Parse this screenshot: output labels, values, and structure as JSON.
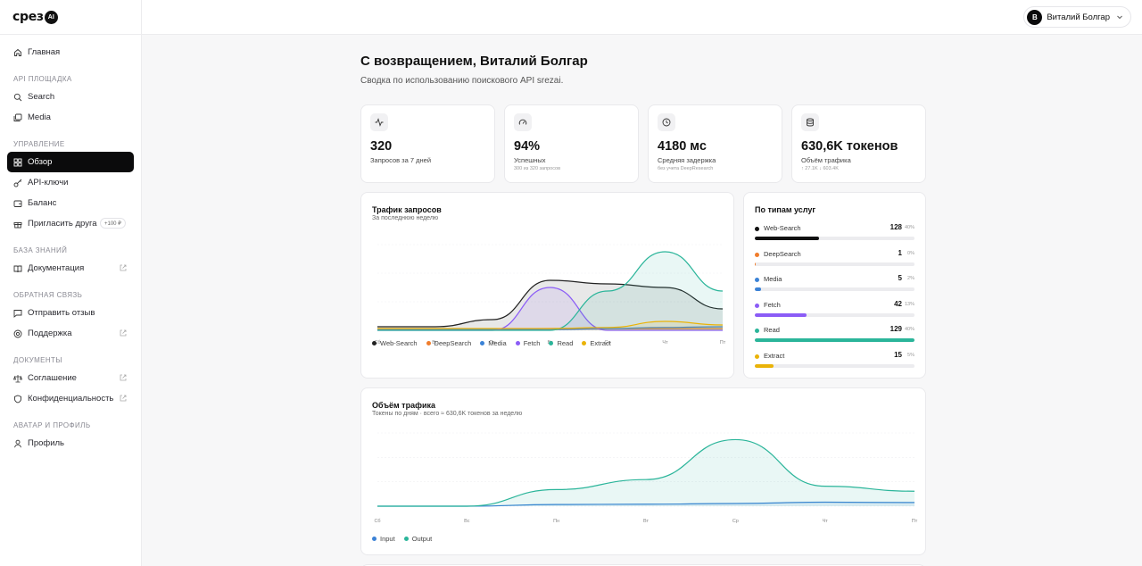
{
  "app": {
    "logo_text": "срез",
    "logo_badge": "AI"
  },
  "sidebar": {
    "home": "Главная",
    "sections": [
      {
        "title": "API ПЛОЩАДКА",
        "items": [
          "Search",
          "Media"
        ]
      },
      {
        "title": "УПРАВЛЕНИЕ",
        "items": [
          "Обзор",
          "API-ключи",
          "Баланс",
          "Пригласить друга"
        ]
      },
      {
        "title": "БАЗА ЗНАНИЙ",
        "items": [
          "Документация"
        ]
      },
      {
        "title": "ОБРАТНАЯ СВЯЗЬ",
        "items": [
          "Отправить отзыв",
          "Поддержка"
        ]
      },
      {
        "title": "ДОКУМЕНТЫ",
        "items": [
          "Соглашение",
          "Конфиденциальность"
        ]
      },
      {
        "title": "АВАТАР И ПРОФИЛЬ",
        "items": [
          "Профиль"
        ]
      }
    ],
    "invite_badge": "+100 ₽",
    "active_item": "Обзор"
  },
  "topbar": {
    "user_initial": "В",
    "user_name": "Виталий Болгар"
  },
  "page": {
    "title": "С возвращением, Виталий Болгар",
    "subtitle": "Сводка по использованию поискового API srezai."
  },
  "stats": [
    {
      "icon": "activity-icon",
      "value": "320",
      "label": "Запросов за 7 дней",
      "sub": ""
    },
    {
      "icon": "gauge-icon",
      "value": "94%",
      "label": "Успешных",
      "sub": "300 из 320 запросов"
    },
    {
      "icon": "clock-icon",
      "value": "4180 мс",
      "label": "Средняя задержка",
      "sub": "без учета DeepResearch"
    },
    {
      "icon": "database-icon",
      "value": "630,6K токенов",
      "label": "Объём трафика",
      "sub": "↑ 27.1K  ↓ 603.4K"
    }
  ],
  "traffic": {
    "title": "Трафик запросов",
    "subtitle": "За последнюю неделю"
  },
  "services": {
    "title": "По типам услуг",
    "items": [
      {
        "name": "Web-Search",
        "count": "128",
        "pct": "40%",
        "share": 0.4,
        "color": "#111111"
      },
      {
        "name": "DeepSearch",
        "count": "1",
        "pct": "0%",
        "share": 0.005,
        "color": "#f07d2c"
      },
      {
        "name": "Media",
        "count": "5",
        "pct": "2%",
        "share": 0.04,
        "color": "#3b82d6"
      },
      {
        "name": "Fetch",
        "count": "42",
        "pct": "13%",
        "share": 0.325,
        "color": "#8b5cf6"
      },
      {
        "name": "Read",
        "count": "129",
        "pct": "40%",
        "share": 1.0,
        "color": "#2bb59a"
      },
      {
        "name": "Extract",
        "count": "15",
        "pct": "5%",
        "share": 0.115,
        "color": "#eab308"
      }
    ]
  },
  "volume": {
    "title": "Объём трафика",
    "subtitle": "Токены по дням · всего ≈ 630,6K токенов за неделю"
  },
  "chart_data": [
    {
      "type": "area",
      "categories": [
        "Сб",
        "Вс",
        "Пн",
        "Вт",
        "Ср",
        "Чт",
        "Пт"
      ],
      "series": [
        {
          "name": "Web-Search",
          "color": "#222222",
          "values": [
            1,
            1,
            3,
            14,
            13,
            12,
            6
          ]
        },
        {
          "name": "DeepSearch",
          "color": "#f07d2c",
          "values": [
            0.3,
            0.3,
            0.3,
            0.5,
            0.5,
            0.5,
            0.5
          ]
        },
        {
          "name": "Media",
          "color": "#3b82d6",
          "values": [
            0.2,
            0.2,
            0.3,
            0.2,
            0.5,
            0.8,
            1
          ]
        },
        {
          "name": "Fetch",
          "color": "#8b5cf6",
          "values": [
            0,
            0,
            0,
            12,
            0,
            0,
            0
          ]
        },
        {
          "name": "Read",
          "color": "#2bb59a",
          "values": [
            0,
            0,
            0,
            0,
            11,
            22,
            11
          ]
        },
        {
          "name": "Extract",
          "color": "#eab308",
          "values": [
            0.5,
            0.5,
            0.5,
            0.5,
            0.8,
            2.5,
            1.5
          ]
        }
      ],
      "ylim": [
        0,
        24
      ]
    },
    {
      "type": "area",
      "categories": [
        "Сб",
        "Вс",
        "Пн",
        "Вт",
        "Ср",
        "Чт",
        "Пт"
      ],
      "series": [
        {
          "name": "Input",
          "color": "#3b82d6",
          "values": [
            0,
            0,
            0.5,
            0.6,
            0.8,
            1.2,
            1.1
          ]
        },
        {
          "name": "Output",
          "color": "#2bb59a",
          "values": [
            0,
            0,
            5,
            8,
            20,
            6,
            4.5
          ]
        }
      ],
      "ylim": [
        0,
        22
      ]
    }
  ]
}
